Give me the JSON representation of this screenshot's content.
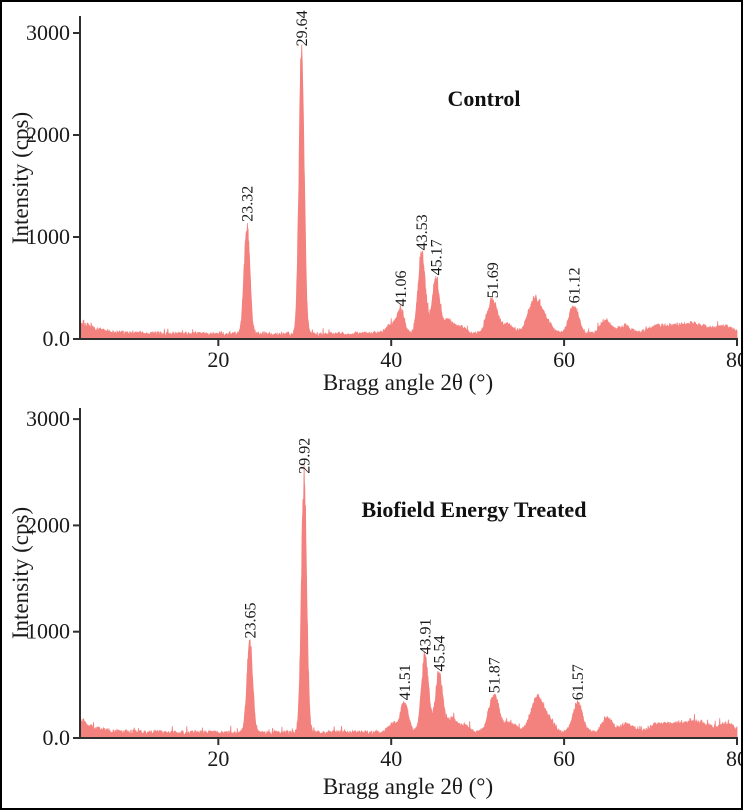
{
  "figure": {
    "background": "#ffffff",
    "border_color": "#000000"
  },
  "chart_data": [
    {
      "type": "line",
      "title": "Control",
      "xlabel": "Bragg angle 2θ (°)",
      "ylabel": "Intensity (cps)",
      "xlim": [
        4,
        80
      ],
      "ylim": [
        0,
        3000
      ],
      "x_ticks": [
        20,
        40,
        60,
        80
      ],
      "y_ticks": [
        {
          "value": 0,
          "label": "0.0"
        },
        {
          "value": 1000,
          "label": "1000"
        },
        {
          "value": 2000,
          "label": "2000"
        },
        {
          "value": 3000,
          "label": "3000"
        }
      ],
      "grid": false,
      "legend": "none",
      "line_color": "#f3817e",
      "axis_color": "#303030",
      "text_color": "#1a1a1a",
      "seed": 7,
      "labeled_peaks": [
        {
          "angle": 23.32,
          "intensity": 1080,
          "label": "23.32",
          "sigma": 0.33
        },
        {
          "angle": 29.64,
          "intensity": 2800,
          "label": "29.64",
          "sigma": 0.3
        },
        {
          "angle": 41.06,
          "intensity": 250,
          "label": "41.06",
          "sigma": 0.45
        },
        {
          "angle": 43.53,
          "intensity": 800,
          "label": "43.53",
          "sigma": 0.42
        },
        {
          "angle": 45.17,
          "intensity": 555,
          "label": "45.17",
          "sigma": 0.42
        },
        {
          "angle": 51.69,
          "intensity": 330,
          "label": "51.69",
          "sigma": 0.6
        },
        {
          "angle": 61.12,
          "intensity": 280,
          "label": "61.12",
          "sigma": 0.55
        }
      ],
      "unlabeled_peaks": [
        {
          "angle": 39.8,
          "intensity": 80,
          "sigma": 0.5
        },
        {
          "angle": 46.6,
          "intensity": 140,
          "sigma": 0.5
        },
        {
          "angle": 48.0,
          "intensity": 70,
          "sigma": 0.6
        },
        {
          "angle": 53.5,
          "intensity": 90,
          "sigma": 0.7
        },
        {
          "angle": 56.6,
          "intensity": 345,
          "sigma": 0.75
        },
        {
          "angle": 58.0,
          "intensity": 100,
          "sigma": 0.6
        },
        {
          "angle": 64.8,
          "intensity": 135,
          "sigma": 0.6
        },
        {
          "angle": 67.0,
          "intensity": 75,
          "sigma": 0.7
        },
        {
          "angle": 70.8,
          "intensity": 75,
          "sigma": 1.1
        },
        {
          "angle": 73.0,
          "intensity": 60,
          "sigma": 1.0
        },
        {
          "angle": 75.3,
          "intensity": 95,
          "sigma": 1.3
        },
        {
          "angle": 78.6,
          "intensity": 75,
          "sigma": 0.9
        }
      ],
      "noise": {
        "base": 26,
        "amplitude": 44,
        "spike": 70,
        "left_edge_boost": 155,
        "left_edge_decay": 2.0
      }
    },
    {
      "type": "line",
      "title": "Biofield Energy Treated",
      "xlabel": "Bragg angle 2θ (°)",
      "ylabel": "Intensity (cps)",
      "xlim": [
        4,
        80
      ],
      "ylim": [
        0,
        3000
      ],
      "x_ticks": [
        20,
        40,
        60,
        80
      ],
      "y_ticks": [
        {
          "value": 0,
          "label": "0.0"
        },
        {
          "value": 1000,
          "label": "1000"
        },
        {
          "value": 2000,
          "label": "2000"
        },
        {
          "value": 3000,
          "label": "3000"
        }
      ],
      "grid": false,
      "legend": "none",
      "line_color": "#f3817e",
      "axis_color": "#303030",
      "text_color": "#1a1a1a",
      "seed": 23,
      "labeled_peaks": [
        {
          "angle": 23.65,
          "intensity": 870,
          "label": "23.65",
          "sigma": 0.33
        },
        {
          "angle": 29.92,
          "intensity": 2420,
          "label": "29.92",
          "sigma": 0.3
        },
        {
          "angle": 41.51,
          "intensity": 290,
          "label": "41.51",
          "sigma": 0.45
        },
        {
          "angle": 43.91,
          "intensity": 720,
          "label": "43.91",
          "sigma": 0.42
        },
        {
          "angle": 45.54,
          "intensity": 560,
          "label": "45.54",
          "sigma": 0.42
        },
        {
          "angle": 51.87,
          "intensity": 355,
          "label": "51.87",
          "sigma": 0.6
        },
        {
          "angle": 61.57,
          "intensity": 290,
          "label": "61.57",
          "sigma": 0.55
        }
      ],
      "unlabeled_peaks": [
        {
          "angle": 40.2,
          "intensity": 80,
          "sigma": 0.5
        },
        {
          "angle": 47.0,
          "intensity": 130,
          "sigma": 0.5
        },
        {
          "angle": 48.4,
          "intensity": 70,
          "sigma": 0.6
        },
        {
          "angle": 53.8,
          "intensity": 90,
          "sigma": 0.7
        },
        {
          "angle": 56.9,
          "intensity": 330,
          "sigma": 0.75
        },
        {
          "angle": 58.3,
          "intensity": 100,
          "sigma": 0.6
        },
        {
          "angle": 65.0,
          "intensity": 140,
          "sigma": 0.6
        },
        {
          "angle": 67.2,
          "intensity": 80,
          "sigma": 0.7
        },
        {
          "angle": 71.0,
          "intensity": 80,
          "sigma": 1.1
        },
        {
          "angle": 73.2,
          "intensity": 60,
          "sigma": 1.0
        },
        {
          "angle": 75.5,
          "intensity": 100,
          "sigma": 1.3
        },
        {
          "angle": 78.8,
          "intensity": 80,
          "sigma": 0.9
        }
      ],
      "noise": {
        "base": 26,
        "amplitude": 44,
        "spike": 70,
        "left_edge_boost": 150,
        "left_edge_decay": 2.0
      }
    }
  ]
}
